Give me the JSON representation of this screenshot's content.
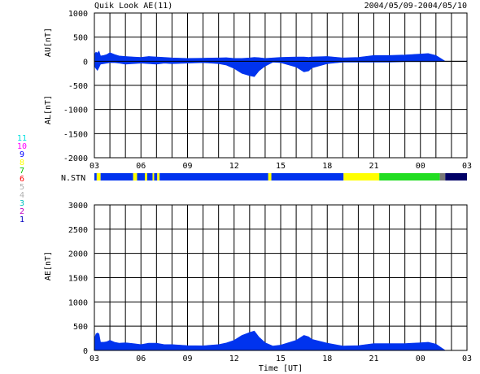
{
  "header": {
    "title": "Quik Look AE(11)",
    "date_range": "2004/05/09-2004/05/10"
  },
  "legend": {
    "items": [
      {
        "label": "11",
        "color": "#00e0e0"
      },
      {
        "label": "10",
        "color": "#ff00ff"
      },
      {
        "label": "9",
        "color": "#0000ff"
      },
      {
        "label": "8",
        "color": "#ffff00"
      },
      {
        "label": "7",
        "color": "#00c000"
      },
      {
        "label": "6",
        "color": "#ff0000"
      },
      {
        "label": "5",
        "color": "#b0b0b0"
      },
      {
        "label": "4",
        "color": "#b0b0b0"
      },
      {
        "label": "3",
        "color": "#00c0c0"
      },
      {
        "label": "2",
        "color": "#c000c0"
      },
      {
        "label": "1",
        "color": "#0000c0"
      }
    ]
  },
  "station_bar": {
    "label": "N.STN",
    "colors": {
      "blue": "#0033ee",
      "yellow": "#ffff00",
      "green": "#22dd22",
      "gray": "#777777",
      "navy": "#000066"
    },
    "segments": [
      {
        "from": 3.0,
        "to": 3.15,
        "level": "blue"
      },
      {
        "from": 3.15,
        "to": 3.4,
        "level": "yellow"
      },
      {
        "from": 3.4,
        "to": 5.5,
        "level": "blue"
      },
      {
        "from": 5.5,
        "to": 5.75,
        "level": "yellow"
      },
      {
        "from": 5.75,
        "to": 6.25,
        "level": "blue"
      },
      {
        "from": 6.25,
        "to": 6.4,
        "level": "yellow"
      },
      {
        "from": 6.4,
        "to": 6.75,
        "level": "blue"
      },
      {
        "from": 6.75,
        "to": 6.85,
        "level": "yellow"
      },
      {
        "from": 6.85,
        "to": 7.05,
        "level": "blue"
      },
      {
        "from": 7.05,
        "to": 7.2,
        "level": "yellow"
      },
      {
        "from": 7.2,
        "to": 14.2,
        "level": "blue"
      },
      {
        "from": 14.2,
        "to": 14.4,
        "level": "yellow"
      },
      {
        "from": 14.4,
        "to": 19.05,
        "level": "blue"
      },
      {
        "from": 19.05,
        "to": 21.35,
        "level": "yellow"
      },
      {
        "from": 21.35,
        "to": 25.25,
        "level": "green"
      },
      {
        "from": 25.25,
        "to": 25.6,
        "level": "gray"
      },
      {
        "from": 25.6,
        "to": 27.0,
        "level": "navy"
      }
    ]
  },
  "chart_data": [
    {
      "type": "area",
      "title": "",
      "xlabel": "",
      "ylabel": "AU[nT]",
      "ylabel2": "AL[nT]",
      "xlim": [
        3,
        27
      ],
      "ylim": [
        -2000,
        1000
      ],
      "yticks": [
        1000,
        500,
        0,
        -500,
        -1000,
        -1500,
        -2000
      ],
      "xtick_labels": [
        "03",
        "06",
        "09",
        "12",
        "15",
        "18",
        "21",
        "00",
        "03"
      ],
      "grid": true,
      "x": [
        3.0,
        3.1,
        3.2,
        3.3,
        3.4,
        3.6,
        3.8,
        4.0,
        4.3,
        4.6,
        5.0,
        5.5,
        6.0,
        6.5,
        7.0,
        7.5,
        8.0,
        9.0,
        10.0,
        11.0,
        11.5,
        12.0,
        12.5,
        13.0,
        13.3,
        13.6,
        14.0,
        14.5,
        15.0,
        16.0,
        16.5,
        16.8,
        17.0,
        18.0,
        19.0,
        20.0,
        21.0,
        22.0,
        23.0,
        24.0,
        24.5,
        25.0,
        25.3,
        25.6
      ],
      "series": [
        {
          "values": [
            140,
            190,
            170,
            210,
            110,
            120,
            140,
            180,
            140,
            110,
            100,
            90,
            80,
            100,
            90,
            80,
            70,
            60,
            65,
            70,
            75,
            60,
            60,
            70,
            80,
            75,
            60,
            70,
            80,
            90,
            90,
            80,
            90,
            100,
            70,
            80,
            120,
            120,
            130,
            150,
            160,
            120,
            60,
            0
          ]
        },
        {
          "values": [
            -100,
            -150,
            -190,
            -130,
            -60,
            -50,
            -40,
            -30,
            -30,
            -40,
            -60,
            -50,
            -40,
            -50,
            -60,
            -40,
            -50,
            -40,
            -30,
            -50,
            -80,
            -150,
            -250,
            -300,
            -320,
            -200,
            -100,
            -20,
            -30,
            -120,
            -220,
            -200,
            -140,
            -50,
            -20,
            -20,
            -20,
            -20,
            -10,
            -10,
            -10,
            -10,
            -5,
            0
          ]
        }
      ]
    },
    {
      "type": "area",
      "title": "",
      "xlabel": "Time [UT]",
      "ylabel": "AE[nT]",
      "xlim": [
        3,
        27
      ],
      "ylim": [
        0,
        3000
      ],
      "yticks": [
        3000,
        2500,
        2000,
        1500,
        1000,
        500,
        0
      ],
      "xtick_labels": [
        "03",
        "06",
        "09",
        "12",
        "15",
        "18",
        "21",
        "00",
        "03"
      ],
      "grid": true,
      "x": [
        3.0,
        3.1,
        3.2,
        3.3,
        3.4,
        3.6,
        3.8,
        4.0,
        4.3,
        4.6,
        5.0,
        5.5,
        6.0,
        6.5,
        7.0,
        7.5,
        8.0,
        9.0,
        10.0,
        11.0,
        11.5,
        12.0,
        12.5,
        13.0,
        13.3,
        13.6,
        14.0,
        14.5,
        15.0,
        16.0,
        16.5,
        16.8,
        17.0,
        18.0,
        19.0,
        20.0,
        21.0,
        22.0,
        23.0,
        24.0,
        24.5,
        25.0,
        25.3,
        25.6
      ],
      "series": [
        {
          "values": [
            240,
            340,
            360,
            340,
            170,
            170,
            180,
            210,
            170,
            150,
            160,
            140,
            120,
            150,
            150,
            120,
            120,
            100,
            95,
            120,
            155,
            210,
            310,
            370,
            400,
            275,
            160,
            90,
            110,
            210,
            310,
            280,
            230,
            150,
            90,
            100,
            140,
            140,
            140,
            160,
            170,
            130,
            65,
            0
          ]
        }
      ]
    }
  ]
}
